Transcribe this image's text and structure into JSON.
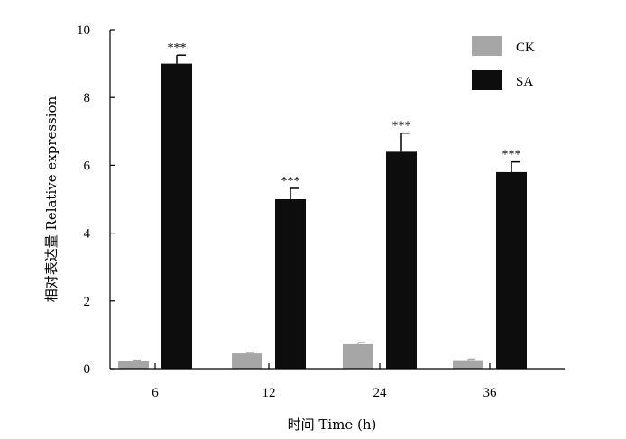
{
  "chart_data": {
    "type": "bar",
    "categories": [
      "6",
      "12",
      "24",
      "36"
    ],
    "series": [
      {
        "name": "CK",
        "values": [
          0.22,
          0.45,
          0.72,
          0.25
        ],
        "errors": [
          0.03,
          0.03,
          0.05,
          0.03
        ],
        "color": "#a6a6a6"
      },
      {
        "name": "SA",
        "values": [
          9.0,
          5.0,
          6.4,
          5.8
        ],
        "errors": [
          0.25,
          0.32,
          0.55,
          0.3
        ],
        "color": "#0d0d0d"
      }
    ],
    "significance": [
      "***",
      "***",
      "***",
      "***"
    ],
    "xlabel": "时间 Time (h)",
    "ylabel": "相对表达量 Relative expression",
    "ylim": [
      0,
      10
    ],
    "yticks": [
      "0",
      "2",
      "4",
      "6",
      "8",
      "10"
    ],
    "legend_position": "top-right",
    "grid": false
  }
}
